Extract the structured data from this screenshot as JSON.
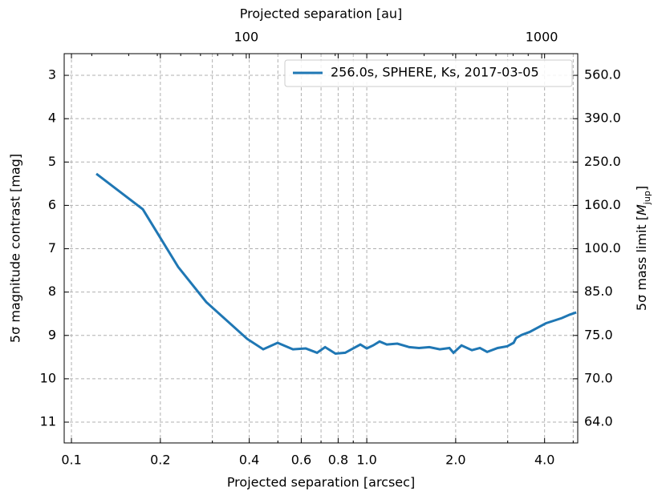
{
  "chart_data": {
    "type": "line",
    "xlabel": "Projected separation [arcsec]",
    "ylabel": "5σ magnitude contrast [mag]",
    "x2label": "Projected separation [au]",
    "y2label_parts": [
      "5σ mass limit [",
      "M",
      "jup",
      "]"
    ],
    "xscale": "log",
    "x2scale": "log",
    "xlim": [
      0.0945,
      5.18
    ],
    "x2lim": [
      24.2,
      1324
    ],
    "ylim": [
      11.48,
      2.5
    ],
    "xticks": [
      0.1,
      0.2,
      0.4,
      0.6,
      0.8,
      {
        "value": 1.0,
        "label": "1.0"
      },
      {
        "value": 2.0,
        "label": "2.0"
      },
      {
        "value": 4.0,
        "label": "4.0"
      }
    ],
    "xminor": [
      0.3,
      0.5,
      0.7,
      0.9,
      3,
      5
    ],
    "x2ticks": [
      100,
      1000
    ],
    "x2minor": [
      30,
      40,
      50,
      60,
      70,
      80,
      90,
      200,
      300,
      400,
      500,
      600,
      700,
      800,
      900
    ],
    "yticks": [
      3,
      4,
      5,
      6,
      7,
      8,
      9,
      10,
      11
    ],
    "y2ticks": [
      {
        "value": 560,
        "label": "560.0",
        "at": 3
      },
      {
        "value": 390,
        "label": "390.0",
        "at": 4
      },
      {
        "value": 250,
        "label": "250.0",
        "at": 5
      },
      {
        "value": 160,
        "label": "160.0",
        "at": 6
      },
      {
        "value": 100,
        "label": "100.0",
        "at": 7
      },
      {
        "value": 85,
        "label": "85.0",
        "at": 8
      },
      {
        "value": 75,
        "label": "75.0",
        "at": 9
      },
      {
        "value": 70,
        "label": "70.0",
        "at": 10
      },
      {
        "value": 64,
        "label": "64.0",
        "at": 11
      }
    ],
    "grid": true,
    "legend": "upper right",
    "series": [
      {
        "name": "256.0s, SPHERE, Ks, 2017-03-05",
        "color": "#1f77b4",
        "x": [
          0.1214,
          0.1745,
          0.2298,
          0.286,
          0.3936,
          0.446,
          0.499,
          0.5623,
          0.6216,
          0.6786,
          0.7226,
          0.7834,
          0.845,
          0.9049,
          0.951,
          1.0,
          1.051,
          1.105,
          1.169,
          1.269,
          1.393,
          1.502,
          1.629,
          1.767,
          1.905,
          1.966,
          2.093,
          2.27,
          2.416,
          2.556,
          2.774,
          2.989,
          3.143,
          3.203,
          3.342,
          3.56,
          3.792,
          4.04,
          4.3,
          4.575,
          4.87,
          5.12
        ],
        "values": [
          5.27,
          6.09,
          7.42,
          8.23,
          9.08,
          9.32,
          9.17,
          9.32,
          9.3,
          9.4,
          9.27,
          9.42,
          9.4,
          9.29,
          9.21,
          9.3,
          9.23,
          9.14,
          9.21,
          9.19,
          9.27,
          9.29,
          9.27,
          9.32,
          9.29,
          9.4,
          9.23,
          9.34,
          9.29,
          9.38,
          9.29,
          9.25,
          9.17,
          9.06,
          8.99,
          8.92,
          8.82,
          8.72,
          8.66,
          8.6,
          8.52,
          8.47
        ]
      }
    ]
  }
}
